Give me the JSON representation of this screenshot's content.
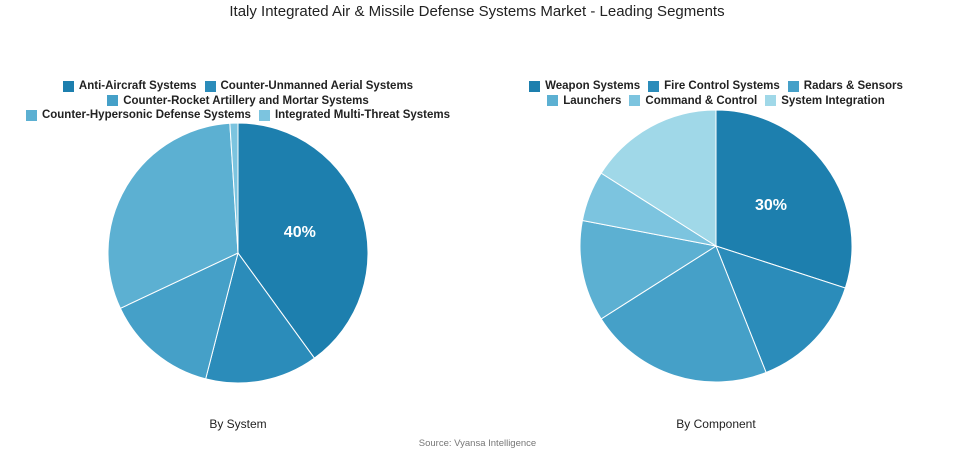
{
  "title": "Italy Integrated Air & Missile Defense Systems Market - Leading Segments",
  "source": "Source: Vyansa Intelligence",
  "chart_data": [
    {
      "type": "pie",
      "caption": "By System",
      "categories": [
        "Anti-Aircraft Systems",
        "Counter-Unmanned Aerial Systems",
        "Counter-Rocket Artillery and Mortar Systems",
        "Counter-Hypersonic Defense Systems",
        "Integrated Multi-Threat Systems"
      ],
      "values": [
        40,
        14,
        14,
        31,
        1
      ],
      "value_labels": [
        "40%",
        null,
        null,
        null,
        null
      ],
      "colors": [
        "#1d7fae",
        "#2b8cba",
        "#45a0c8",
        "#5cb0d2",
        "#7cc4df"
      ]
    },
    {
      "type": "pie",
      "caption": "By Component",
      "categories": [
        "Weapon Systems",
        "Fire Control Systems",
        "Radars & Sensors",
        "Launchers",
        "Command & Control",
        "System Integration"
      ],
      "values": [
        30,
        14,
        22,
        12,
        6,
        16
      ],
      "value_labels": [
        "30%",
        null,
        null,
        null,
        null,
        null
      ],
      "colors": [
        "#1d7fae",
        "#2b8cba",
        "#45a0c8",
        "#5cb0d2",
        "#7cc4df",
        "#a0d8e8"
      ]
    }
  ]
}
